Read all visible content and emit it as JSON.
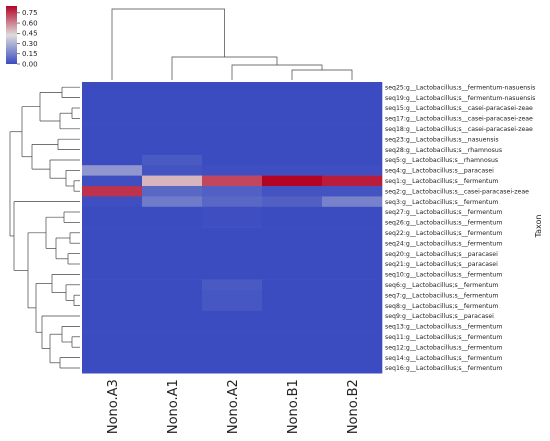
{
  "chart_data": {
    "type": "heatmap",
    "ylabel": "Taxon",
    "columns": [
      "Nono.A3",
      "Nono.A1",
      "Nono.A2",
      "Nono.B1",
      "Nono.B2"
    ],
    "rows": [
      "seq25:g__Lactobacillus;s__fermentum-nasuensis",
      "seq19:g__Lactobacillus;s__fermentum-nasuensis",
      "seq15:g__Lactobacillus;s__casei-paracasei-zeae",
      "seq17:g__Lactobacillus;s__casei-paracasei-zeae",
      "seq18:g__Lactobacillus;s__casei-paracasei-zeae",
      "seq23:g__Lactobacillus;s__nasuensis",
      "seq28:g__Lactobacillus;s__rhamnosus",
      "seq5:g__Lactobacillus;s__rhamnosus",
      "seq4:g__Lactobacillus;s__paracasei",
      "seq1:g__Lactobacillus;s__fermentum",
      "seq2:g__Lactobacillus;s__casei-paracasei-zeae",
      "seq3:g__Lactobacillus;s__fermentum",
      "seq27:g__Lactobacillus;s__fermentum",
      "seq26:g__Lactobacillus;s__fermentum",
      "seq22:g__Lactobacillus;s__fermentum",
      "seq24:g__Lactobacillus;s__fermentum",
      "seq20:g__Lactobacillus;s__paracasei",
      "seq21:g__Lactobacillus;s__paracasei",
      "seq10:g__Lactobacillus;s__fermentum",
      "seq6:g__Lactobacillus;s__fermentum",
      "seq7:g__Lactobacillus;s__fermentum",
      "seq8:g__Lactobacillus;s__fermentum",
      "seq9:g__Lactobacillus;s__paracasei",
      "seq13:g__Lactobacillus;s__fermentum",
      "seq11:g__Lactobacillus;s__fermentum",
      "seq12:g__Lactobacillus;s__fermentum",
      "seq14:g__Lactobacillus;s__fermentum",
      "seq16:g__Lactobacillus;s__fermentum"
    ],
    "values": [
      [
        0.0,
        0.0,
        0.0,
        0.0,
        0.0
      ],
      [
        0.0,
        0.0,
        0.0,
        0.0,
        0.0
      ],
      [
        0.0,
        0.0,
        0.0,
        0.0,
        0.0
      ],
      [
        0.0,
        0.0,
        0.0,
        0.0,
        0.0
      ],
      [
        0.0,
        0.0,
        0.0,
        0.0,
        0.0
      ],
      [
        0.0,
        0.0,
        0.0,
        0.0,
        0.0
      ],
      [
        0.0,
        0.0,
        0.0,
        0.0,
        0.0
      ],
      [
        0.0,
        0.04,
        0.0,
        0.0,
        0.0
      ],
      [
        0.22,
        0.02,
        0.01,
        0.01,
        0.01
      ],
      [
        0.01,
        0.5,
        0.72,
        0.85,
        0.8
      ],
      [
        0.76,
        0.08,
        0.06,
        0.02,
        0.02
      ],
      [
        0.01,
        0.14,
        0.08,
        0.06,
        0.16
      ],
      [
        0.0,
        0.0,
        0.01,
        0.0,
        0.0
      ],
      [
        0.0,
        0.0,
        0.01,
        0.0,
        0.0
      ],
      [
        0.0,
        0.0,
        0.0,
        0.0,
        0.0
      ],
      [
        0.0,
        0.0,
        0.0,
        0.0,
        0.0
      ],
      [
        0.0,
        0.0,
        0.0,
        0.0,
        0.0
      ],
      [
        0.0,
        0.0,
        0.0,
        0.0,
        0.0
      ],
      [
        0.0,
        0.0,
        0.0,
        0.0,
        0.0
      ],
      [
        0.0,
        0.0,
        0.04,
        0.0,
        0.0
      ],
      [
        0.0,
        0.0,
        0.03,
        0.0,
        0.0
      ],
      [
        0.0,
        0.0,
        0.03,
        0.0,
        0.0
      ],
      [
        0.0,
        0.0,
        0.0,
        0.0,
        0.0
      ],
      [
        0.0,
        0.0,
        0.0,
        0.0,
        0.0
      ],
      [
        0.0,
        0.0,
        0.0,
        0.0,
        0.0
      ],
      [
        0.0,
        0.0,
        0.0,
        0.0,
        0.0
      ],
      [
        0.0,
        0.0,
        0.0,
        0.0,
        0.0
      ],
      [
        0.0,
        0.0,
        0.0,
        0.0,
        0.0
      ]
    ],
    "colorbar": {
      "range": [
        0.0,
        0.85
      ],
      "ticks": [
        "0.75",
        "0.60",
        "0.45",
        "0.30",
        "0.15",
        "0.00"
      ],
      "tick_values": [
        0.75,
        0.6,
        0.45,
        0.3,
        0.15,
        0.0
      ],
      "colors": [
        "#3b4cc0",
        "#dddcdc",
        "#b40426"
      ]
    },
    "dendrograms": {
      "columns": "top",
      "rows": "left"
    },
    "grid": false
  }
}
